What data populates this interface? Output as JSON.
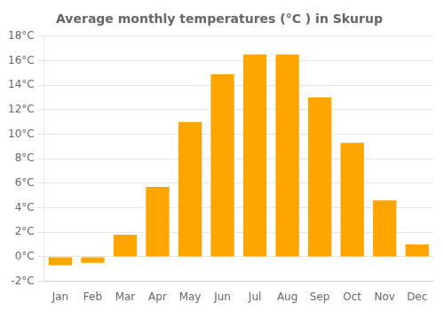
{
  "chart_data": {
    "type": "bar",
    "title": "Average monthly temperatures (°C ) in Skurup",
    "categories": [
      "Jan",
      "Feb",
      "Mar",
      "Apr",
      "May",
      "Jun",
      "Jul",
      "Aug",
      "Sep",
      "Oct",
      "Nov",
      "Dec"
    ],
    "values": [
      -0.7,
      -0.5,
      1.8,
      5.7,
      11.0,
      14.9,
      16.5,
      16.5,
      13.0,
      9.3,
      4.6,
      1.0
    ],
    "color": "#FFA500",
    "ylim": [
      -2,
      18
    ],
    "yticks": [
      {
        "value": -2,
        "label": "-2°C"
      },
      {
        "value": 0,
        "label": "0°C"
      },
      {
        "value": 2,
        "label": "2°C"
      },
      {
        "value": 4,
        "label": "4°C"
      },
      {
        "value": 6,
        "label": "6°C"
      },
      {
        "value": 8,
        "label": "8°C"
      },
      {
        "value": 10,
        "label": "10°C"
      },
      {
        "value": 12,
        "label": "12°C"
      },
      {
        "value": 14,
        "label": "14°C"
      },
      {
        "value": 16,
        "label": "16°C"
      },
      {
        "value": 18,
        "label": "18°C"
      }
    ],
    "grid": true
  }
}
